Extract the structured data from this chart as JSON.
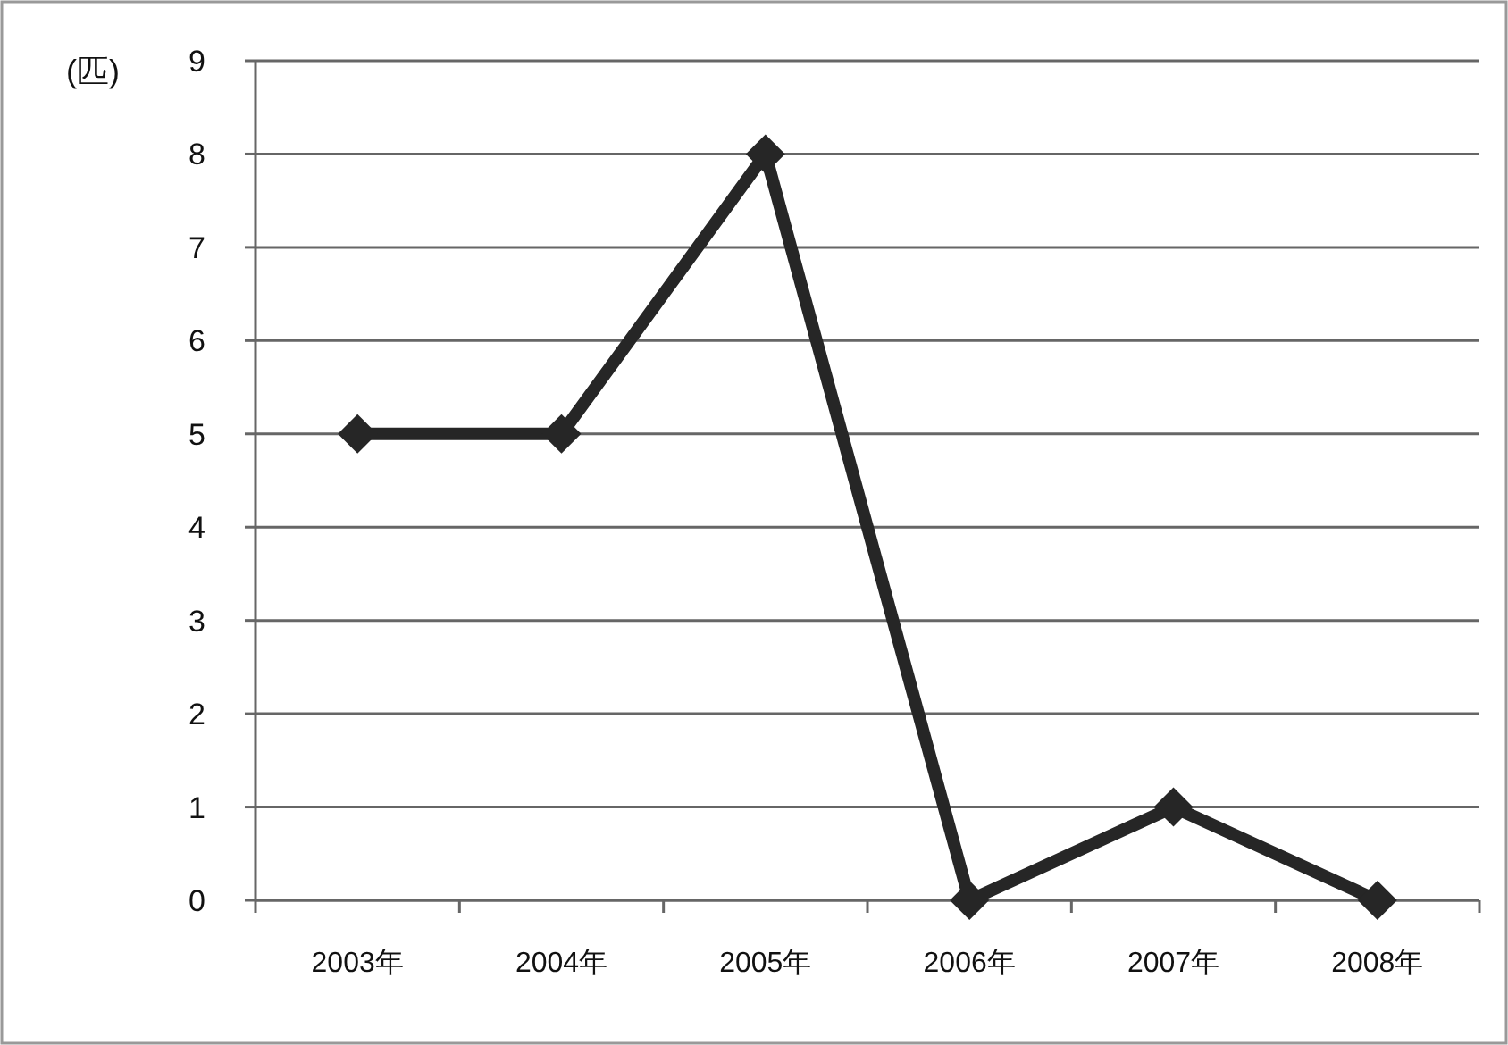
{
  "chart_data": {
    "type": "line",
    "ylabel": "(匹)",
    "categories": [
      "2003年",
      "2004年",
      "2005年",
      "2006年",
      "2007年",
      "2008年"
    ],
    "values": [
      5,
      5,
      8,
      0,
      1,
      0
    ],
    "color": "#262626",
    "ylim": [
      0,
      9
    ],
    "yticks": [
      0,
      1,
      2,
      3,
      4,
      5,
      6,
      7,
      8,
      9
    ],
    "grid": "y",
    "marker": "diamond",
    "line_style": "solid"
  }
}
